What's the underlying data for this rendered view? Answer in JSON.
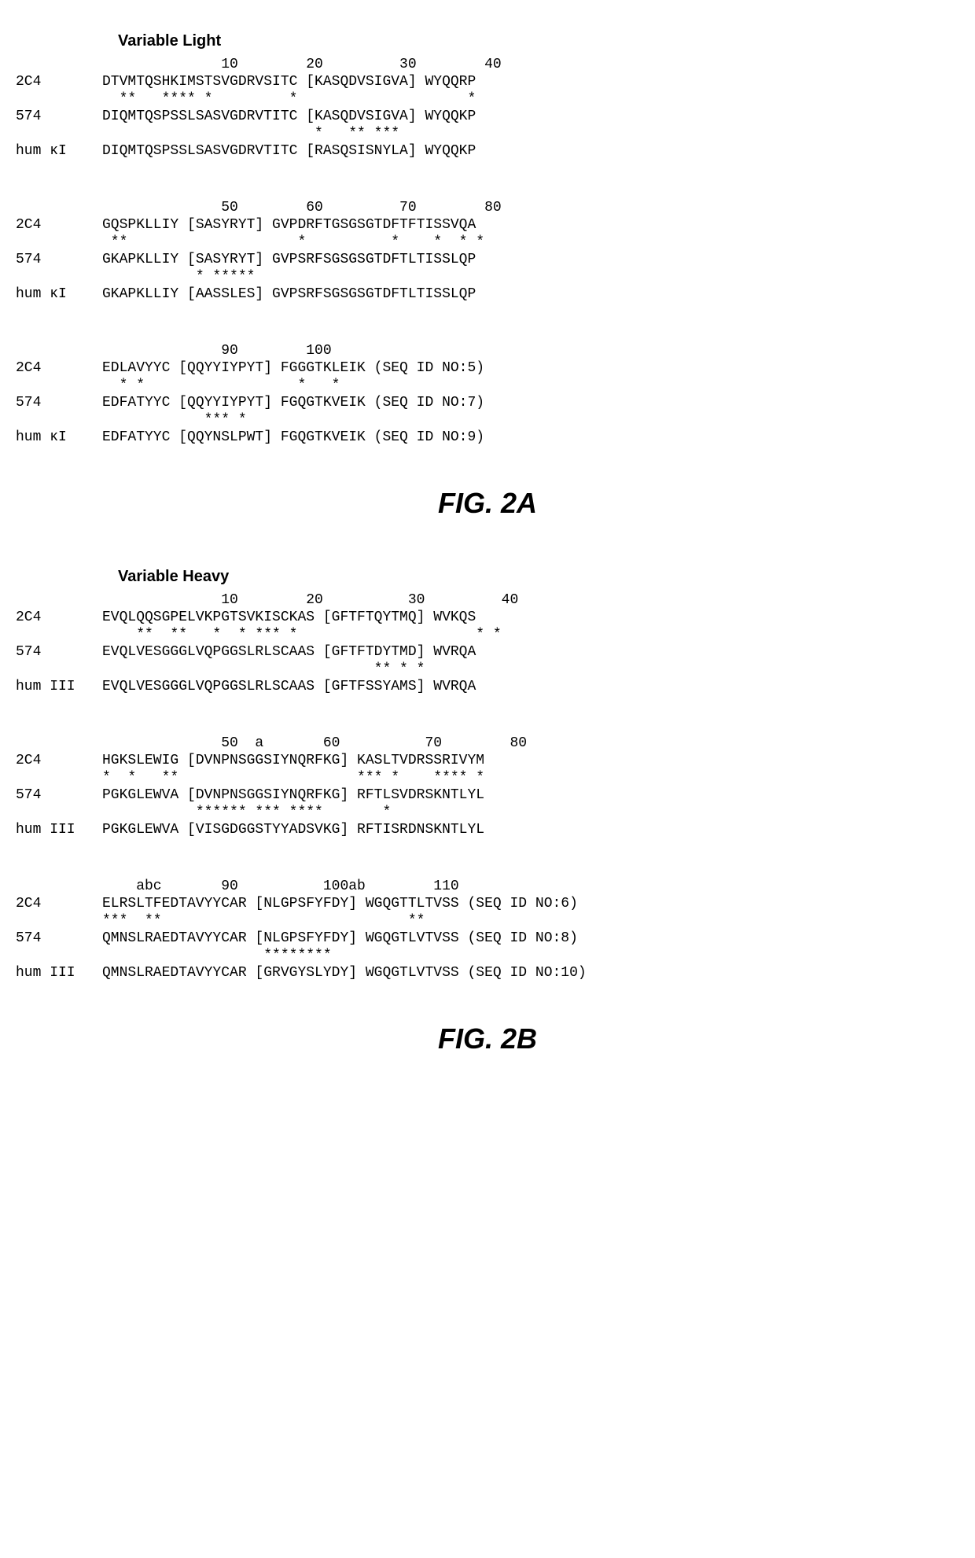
{
  "figA": {
    "title": "Variable Light",
    "caption": "FIG. 2A",
    "blocks": [
      {
        "pos": "              10        20         30        40",
        "r1_lbl": "2C4",
        "r1_seq": "DTVMTQSHKIMSTSVGDRVSITC [KASQDVSIGVA] WYQQRP",
        "s1": "  **   **** *         *                    *",
        "r2_lbl": "574",
        "r2_seq": "DIQMTQSPSSLSASVGDRVTITC [KASQDVSIGVA] WYQQKP",
        "s2": "                         *   ** ***",
        "r3_lbl": "hum κI",
        "r3_seq": "DIQMTQSPSSLSASVGDRVTITC [RASQSISNYLA] WYQQKP"
      },
      {
        "pos": "              50        60         70        80",
        "r1_lbl": "2C4",
        "r1_seq": "GQSPKLLIY [SASYRYT] GVPDRFTGSGSGTDFTFTISSVQA",
        "s1": " **                    *          *    *  * *",
        "r2_lbl": "574",
        "r2_seq": "GKAPKLLIY [SASYRYT] GVPSRFSGSGSGTDFTLTISSLQP",
        "s2": "           * *****",
        "r3_lbl": "hum κI",
        "r3_seq": "GKAPKLLIY [AASSLES] GVPSRFSGSGSGTDFTLTISSLQP"
      },
      {
        "pos": "              90        100",
        "r1_lbl": "2C4",
        "r1_seq": "EDLAVYYC [QQYYIYPYT] FGGGTKLEIK (SEQ ID NO:5)",
        "s1": "  * *                  *   *",
        "r2_lbl": "574",
        "r2_seq": "EDFATYYC [QQYYIYPYT] FGQGTKVEIK (SEQ ID NO:7)",
        "s2": "            *** *",
        "r3_lbl": "hum κI",
        "r3_seq": "EDFATYYC [QQYNSLPWT] FGQGTKVEIK (SEQ ID NO:9)"
      }
    ]
  },
  "figB": {
    "title": "Variable Heavy",
    "caption": "FIG. 2B",
    "blocks": [
      {
        "pos": "              10        20          30         40",
        "r1_lbl": "2C4",
        "r1_seq": "EVQLQQSGPELVKPGTSVKISCKAS [GFTFTQYTMQ] WVKQS",
        "s1": "    **  **   *  * *** *                     * *",
        "r2_lbl": "574",
        "r2_seq": "EVQLVESGGGLVQPGGSLRLSCAAS [GFTFTDYTMD] WVRQA",
        "s2": "                                ** * *",
        "r3_lbl": "hum III",
        "r3_seq": "EVQLVESGGGLVQPGGSLRLSCAAS [GFTFSSYAMS] WVRQA"
      },
      {
        "pos": "              50  a       60          70        80",
        "r1_lbl": "2C4",
        "r1_seq": "HGKSLEWIG [DVNPNSGGSIYNQRFKG] KASLTVDRSSRIVYM",
        "s1": "*  *   **                     *** *    **** *",
        "r2_lbl": "574",
        "r2_seq": "PGKGLEWVA [DVNPNSGGSIYNQRFKG] RFTLSVDRSKNTLYL",
        "s2": "           ****** *** ****       *",
        "r3_lbl": "hum III",
        "r3_seq": "PGKGLEWVA [VISGDGGSTYYADSVKG] RFTISRDNSKNTLYL"
      },
      {
        "pos": "    abc       90          100ab        110",
        "r1_lbl": "2C4",
        "r1_seq": "ELRSLTFEDTAVYYCAR [NLGPSFYFDY] WGQGTTLTVSS (SEQ ID NO:6)",
        "s1": "***  **                             **",
        "r2_lbl": "574",
        "r2_seq": "QMNSLRAEDTAVYYCAR [NLGPSFYFDY] WGQGTLVTVSS (SEQ ID NO:8)",
        "s2": "                   ********",
        "r3_lbl": "hum III",
        "r3_seq": "QMNSLRAEDTAVYYCAR [GRVGYSLYDY] WGQGTLVTVSS (SEQ ID NO:10)"
      }
    ]
  }
}
